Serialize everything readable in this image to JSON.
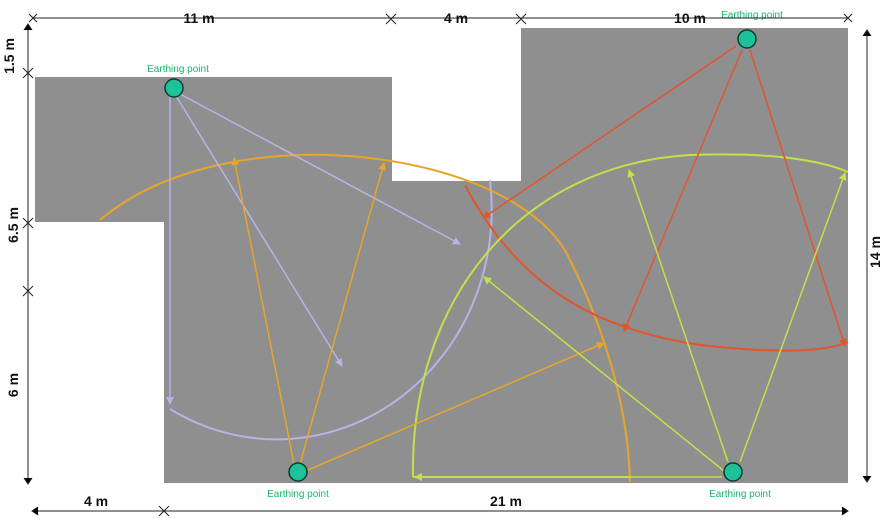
{
  "colors": {
    "roof": "#8f8f8f",
    "dimension": "#222222",
    "earthing_fill": "#1fc19a",
    "earthing_stroke": "#0b3d2c",
    "earthing_label": "#19b46a",
    "lavender": "#b6b4e6",
    "orange": "#e8a52b",
    "red": "#e0562c",
    "lime": "#c2e04a"
  },
  "dimensions": {
    "top_left": "11 m",
    "top_middle": "4 m",
    "top_right": "10 m",
    "left_top": "1.5 m",
    "left_middle": "6.5 m",
    "left_bottom": "6 m",
    "bottom_left": "4 m",
    "bottom_right": "21 m",
    "right": "14 m"
  },
  "earthing_points": [
    {
      "label": "Earthing point"
    },
    {
      "label": "Earthing point"
    },
    {
      "label": "Earthing point"
    },
    {
      "label": "Earthing point"
    }
  ]
}
